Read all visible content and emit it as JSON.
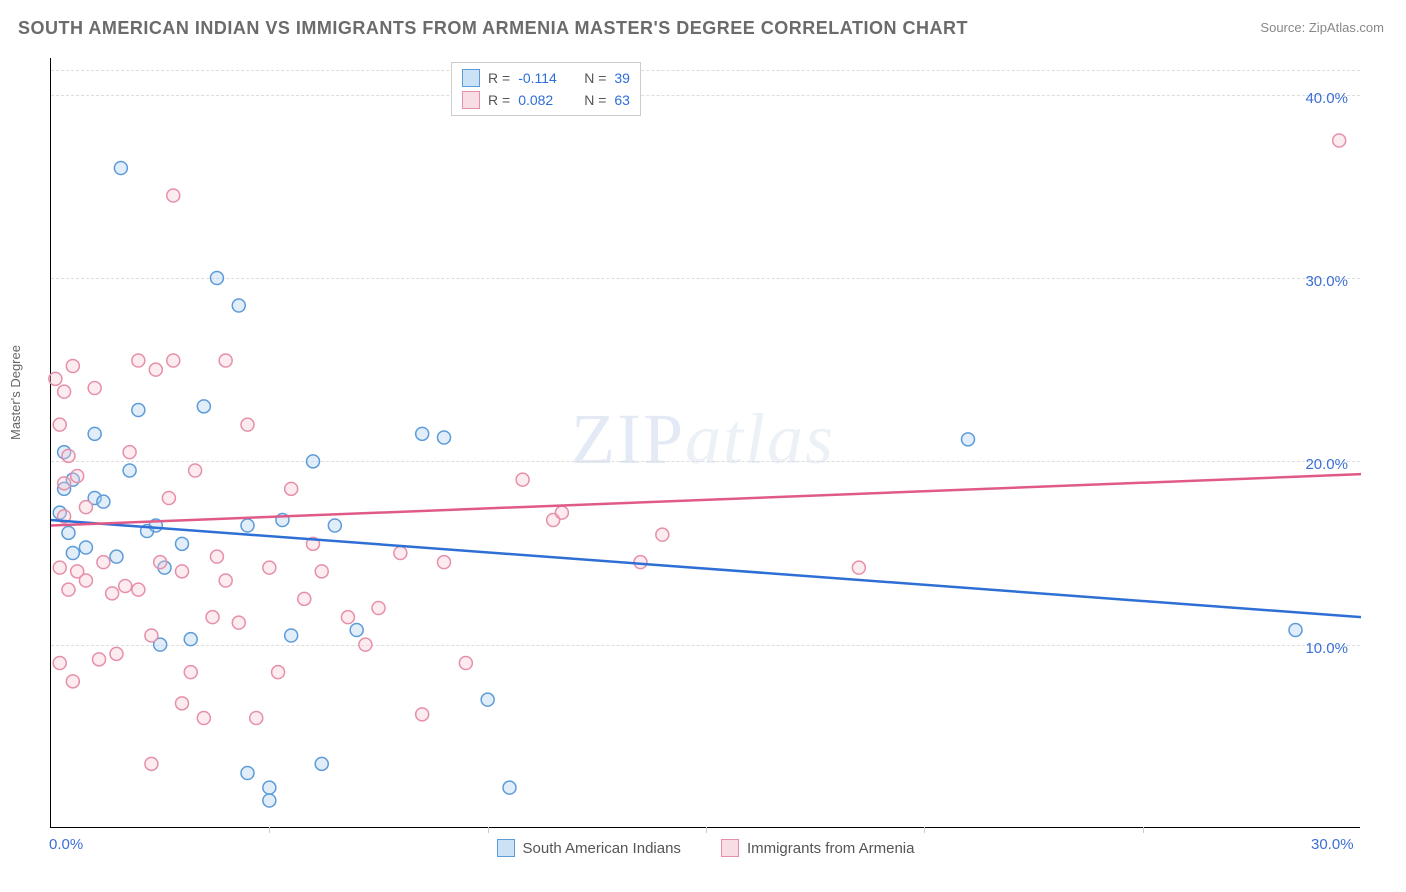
{
  "title": "SOUTH AMERICAN INDIAN VS IMMIGRANTS FROM ARMENIA MASTER'S DEGREE CORRELATION CHART",
  "source_label": "Source:",
  "source_name": "ZipAtlas.com",
  "ylabel": "Master's Degree",
  "watermark": "ZIPatlas",
  "chart": {
    "type": "scatter",
    "background_color": "#ffffff",
    "grid_color": "#dddddd",
    "axis_color": "#000000",
    "xlim": [
      0,
      30
    ],
    "ylim": [
      0,
      42
    ],
    "x_ticks": [
      0,
      30
    ],
    "x_tick_labels": [
      "0.0%",
      "30.0%"
    ],
    "x_minor_ticks": [
      5,
      10,
      15,
      20,
      25
    ],
    "y_gridlines": [
      10,
      20,
      30,
      40
    ],
    "y_gridline_labels": [
      "10.0%",
      "20.0%",
      "30.0%",
      "40.0%"
    ],
    "marker_radius": 6.5,
    "marker_stroke_width": 1.5,
    "marker_fill_opacity": 0.35,
    "trend_line_width": 2.5,
    "series": [
      {
        "key": "sai",
        "label": "South American Indians",
        "color_stroke": "#5c9bd9",
        "color_fill": "#a9cdee",
        "trend_color": "#2e6fd6",
        "R": "-0.114",
        "N": "39",
        "trend_start_y": 16.8,
        "trend_end_y": 11.5,
        "points": [
          [
            0.2,
            17.2
          ],
          [
            0.3,
            18.5
          ],
          [
            0.3,
            20.5
          ],
          [
            0.4,
            16.1
          ],
          [
            0.5,
            19.0
          ],
          [
            0.5,
            15.0
          ],
          [
            0.8,
            15.3
          ],
          [
            1.0,
            18.0
          ],
          [
            1.0,
            21.5
          ],
          [
            1.2,
            17.8
          ],
          [
            1.5,
            14.8
          ],
          [
            1.6,
            36.0
          ],
          [
            1.8,
            19.5
          ],
          [
            2.0,
            22.8
          ],
          [
            2.2,
            16.2
          ],
          [
            2.4,
            16.5
          ],
          [
            2.5,
            10.0
          ],
          [
            2.6,
            14.2
          ],
          [
            3.0,
            15.5
          ],
          [
            3.2,
            10.3
          ],
          [
            3.5,
            23.0
          ],
          [
            3.8,
            30.0
          ],
          [
            4.3,
            28.5
          ],
          [
            4.5,
            3.0
          ],
          [
            4.5,
            16.5
          ],
          [
            5.0,
            2.2
          ],
          [
            5.0,
            1.5
          ],
          [
            5.3,
            16.8
          ],
          [
            5.5,
            10.5
          ],
          [
            6.0,
            20.0
          ],
          [
            6.2,
            3.5
          ],
          [
            6.5,
            16.5
          ],
          [
            7.0,
            10.8
          ],
          [
            8.5,
            21.5
          ],
          [
            9.0,
            21.3
          ],
          [
            10.0,
            7.0
          ],
          [
            10.5,
            2.2
          ],
          [
            21.0,
            21.2
          ],
          [
            28.5,
            10.8
          ]
        ]
      },
      {
        "key": "arm",
        "label": "Immigrants from Armenia",
        "color_stroke": "#e68fa8",
        "color_fill": "#f5c6d2",
        "trend_color": "#e05a88",
        "R": "0.082",
        "N": "63",
        "trend_start_y": 16.5,
        "trend_end_y": 19.3,
        "points": [
          [
            0.1,
            24.5
          ],
          [
            0.2,
            9.0
          ],
          [
            0.2,
            14.2
          ],
          [
            0.2,
            22.0
          ],
          [
            0.3,
            17.0
          ],
          [
            0.3,
            18.8
          ],
          [
            0.3,
            23.8
          ],
          [
            0.4,
            13.0
          ],
          [
            0.4,
            20.3
          ],
          [
            0.5,
            25.2
          ],
          [
            0.5,
            8.0
          ],
          [
            0.6,
            14.0
          ],
          [
            0.6,
            19.2
          ],
          [
            0.8,
            13.5
          ],
          [
            0.8,
            17.5
          ],
          [
            1.0,
            24.0
          ],
          [
            1.1,
            9.2
          ],
          [
            1.2,
            14.5
          ],
          [
            1.4,
            12.8
          ],
          [
            1.5,
            9.5
          ],
          [
            1.7,
            13.2
          ],
          [
            1.8,
            20.5
          ],
          [
            2.0,
            13.0
          ],
          [
            2.0,
            25.5
          ],
          [
            2.3,
            3.5
          ],
          [
            2.3,
            10.5
          ],
          [
            2.4,
            25.0
          ],
          [
            2.5,
            14.5
          ],
          [
            2.7,
            18.0
          ],
          [
            2.8,
            25.5
          ],
          [
            2.8,
            34.5
          ],
          [
            3.0,
            6.8
          ],
          [
            3.0,
            14.0
          ],
          [
            3.2,
            8.5
          ],
          [
            3.3,
            19.5
          ],
          [
            3.5,
            6.0
          ],
          [
            3.7,
            11.5
          ],
          [
            3.8,
            14.8
          ],
          [
            4.0,
            13.5
          ],
          [
            4.0,
            25.5
          ],
          [
            4.3,
            11.2
          ],
          [
            4.5,
            22.0
          ],
          [
            4.7,
            6.0
          ],
          [
            5.0,
            14.2
          ],
          [
            5.2,
            8.5
          ],
          [
            5.5,
            18.5
          ],
          [
            5.8,
            12.5
          ],
          [
            6.0,
            15.5
          ],
          [
            6.2,
            14.0
          ],
          [
            6.8,
            11.5
          ],
          [
            7.2,
            10.0
          ],
          [
            7.5,
            12.0
          ],
          [
            8.0,
            15.0
          ],
          [
            8.5,
            6.2
          ],
          [
            9.0,
            14.5
          ],
          [
            9.5,
            9.0
          ],
          [
            10.8,
            19.0
          ],
          [
            11.5,
            16.8
          ],
          [
            11.7,
            17.2
          ],
          [
            13.5,
            14.5
          ],
          [
            14.0,
            16.0
          ],
          [
            18.5,
            14.2
          ],
          [
            29.5,
            37.5
          ]
        ]
      }
    ]
  },
  "stats_box": {
    "R_label": "R =",
    "N_label": "N =",
    "value_color": "#2e6fd6"
  }
}
